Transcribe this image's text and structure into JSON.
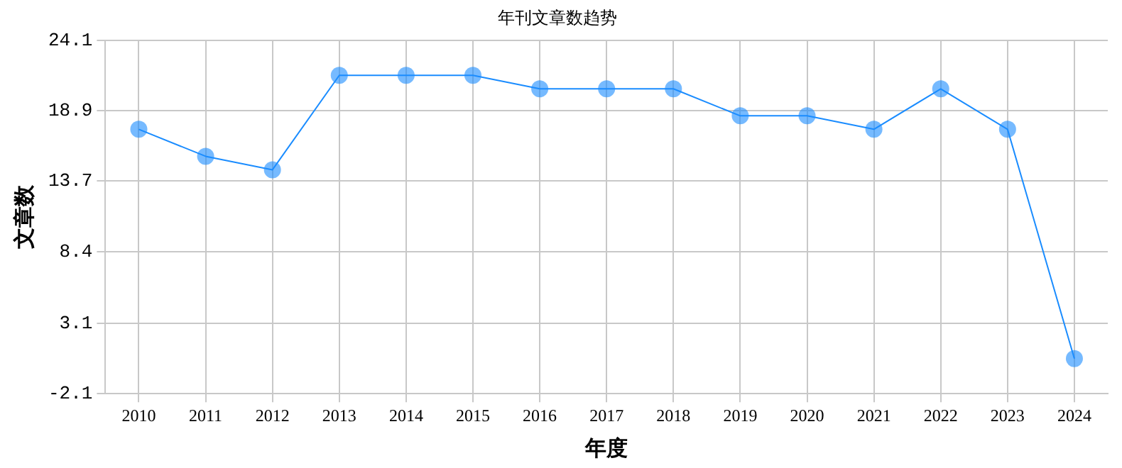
{
  "chart_data": {
    "type": "line",
    "title": "年刊文章数趋势",
    "xlabel": "年度",
    "ylabel": "文章数",
    "categories": [
      "2010",
      "2011",
      "2012",
      "2013",
      "2014",
      "2015",
      "2016",
      "2017",
      "2018",
      "2019",
      "2020",
      "2021",
      "2022",
      "2023",
      "2024"
    ],
    "series": [
      {
        "color": "#1a8cff",
        "values": [
          17.5,
          15.5,
          14.5,
          21.5,
          21.5,
          21.5,
          20.5,
          20.5,
          20.5,
          18.5,
          18.5,
          17.5,
          20.5,
          17.5,
          0.5
        ]
      }
    ],
    "ylim": [
      -2.1,
      24.1
    ],
    "yticks": [
      -2.1,
      3.1,
      8.4,
      13.7,
      18.9,
      24.1
    ],
    "grid": true,
    "marker": "circle",
    "line_style": "solid"
  }
}
